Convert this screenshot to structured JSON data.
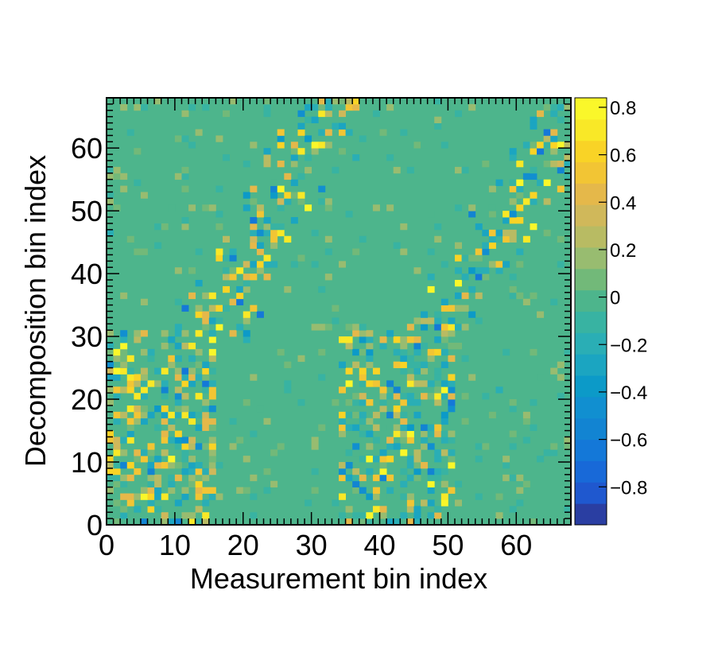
{
  "chart_data": {
    "type": "heatmap",
    "title": "",
    "xlabel": "Measurement bin index",
    "ylabel": "Decomposition bin index",
    "xlim": [
      0,
      68
    ],
    "ylim": [
      0,
      68
    ],
    "x_ticks": [
      "0",
      "10",
      "20",
      "30",
      "40",
      "50",
      "60"
    ],
    "y_ticks": [
      "0",
      "10",
      "20",
      "30",
      "40",
      "50",
      "60"
    ],
    "nx": 68,
    "ny": 68,
    "zlim": [
      -0.96,
      0.84
    ],
    "background_value": 0.0,
    "colorbar": {
      "ticks": [
        "0.8",
        "0.6",
        "0.4",
        "0.2",
        "0",
        "−0.2",
        "−0.4",
        "−0.6",
        "−0.8"
      ],
      "tick_values": [
        0.8,
        0.6,
        0.4,
        0.2,
        0.0,
        -0.2,
        -0.4,
        -0.6,
        -0.8
      ],
      "colors": [
        "#2a3ea2",
        "#1f58cf",
        "#1869d8",
        "#1478d8",
        "#1284d2",
        "#118fd0",
        "#0c9ac8",
        "#1ba5c1",
        "#2aaeb5",
        "#38b3a2",
        "#4db58c",
        "#72b979",
        "#98bc70",
        "#b8bb63",
        "#d0b85a",
        "#e5b84a",
        "#f2c534",
        "#f9d326",
        "#f9e827",
        "#faf72a"
      ]
    },
    "structure": [
      {
        "desc": "block",
        "x": [
          0,
          15
        ],
        "y": [
          0,
          30
        ]
      },
      {
        "desc": "diagonal band",
        "x": [
          15,
          33
        ],
        "y": [
          30,
          68
        ]
      },
      {
        "desc": "block",
        "x": [
          34,
          50
        ],
        "y": [
          0,
          30
        ]
      },
      {
        "desc": "diagonal band",
        "x": [
          48,
          68
        ],
        "y": [
          30,
          68
        ]
      }
    ]
  }
}
